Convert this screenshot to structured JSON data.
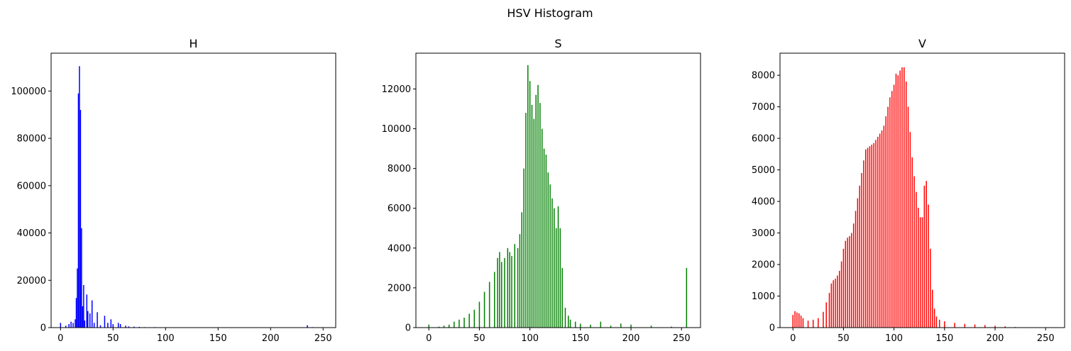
{
  "figure": {
    "title": "HSV Histogram"
  },
  "chart_data": [
    {
      "type": "bar",
      "title": "H",
      "color": "#0000ff",
      "xlim": [
        -9,
        262
      ],
      "ylim": [
        0,
        116000
      ],
      "xticks": [
        0,
        50,
        100,
        150,
        200,
        250
      ],
      "yticks": [
        0,
        20000,
        40000,
        60000,
        80000,
        100000
      ],
      "grid": false,
      "x": [
        0,
        5,
        8,
        10,
        12,
        14,
        15,
        16,
        17,
        18,
        19,
        20,
        21,
        22,
        23,
        25,
        26,
        28,
        30,
        32,
        35,
        38,
        42,
        45,
        48,
        50,
        55,
        57,
        62,
        65,
        70,
        75,
        80,
        90,
        100,
        120,
        150,
        180,
        200,
        220,
        235,
        240,
        250
      ],
      "values": [
        2000,
        800,
        1500,
        2500,
        2000,
        3500,
        12500,
        25000,
        99000,
        110500,
        92000,
        42000,
        9000,
        18000,
        3000,
        14000,
        7000,
        6000,
        11500,
        2000,
        6500,
        1000,
        5000,
        2000,
        3500,
        1500,
        2000,
        1500,
        800,
        500,
        400,
        300,
        200,
        200,
        150,
        150,
        100,
        100,
        100,
        100,
        1000,
        200,
        100
      ]
    },
    {
      "type": "bar",
      "title": "S",
      "color": "#008000",
      "xlim": [
        -12.8,
        268.8
      ],
      "ylim": [
        0,
        13800
      ],
      "xticks": [
        0,
        50,
        100,
        150,
        200,
        250
      ],
      "yticks": [
        0,
        2000,
        4000,
        6000,
        8000,
        10000,
        12000
      ],
      "grid": false,
      "x": [
        0,
        10,
        15,
        20,
        25,
        30,
        35,
        40,
        45,
        50,
        55,
        60,
        65,
        68,
        70,
        72,
        75,
        78,
        80,
        82,
        85,
        88,
        90,
        92,
        94,
        96,
        98,
        100,
        102,
        104,
        106,
        108,
        110,
        112,
        114,
        116,
        118,
        120,
        122,
        124,
        126,
        128,
        130,
        132,
        135,
        138,
        140,
        145,
        150,
        160,
        170,
        180,
        190,
        200,
        220,
        240,
        255
      ],
      "values": [
        150,
        50,
        100,
        150,
        300,
        400,
        500,
        700,
        900,
        1300,
        1800,
        2300,
        2800,
        3500,
        3800,
        3300,
        3500,
        4000,
        3800,
        3600,
        4200,
        4000,
        4700,
        5800,
        8000,
        10800,
        13200,
        12400,
        11200,
        10500,
        11700,
        12200,
        11300,
        10000,
        9000,
        8700,
        7800,
        7200,
        6500,
        6000,
        5000,
        6100,
        5000,
        3000,
        1000,
        600,
        400,
        300,
        200,
        150,
        300,
        100,
        200,
        150,
        100,
        50,
        3000
      ]
    },
    {
      "type": "bar",
      "title": "V",
      "color": "#ff0000",
      "xlim": [
        -12.8,
        268.8
      ],
      "ylim": [
        0,
        8700
      ],
      "xticks": [
        0,
        50,
        100,
        150,
        200,
        250
      ],
      "yticks": [
        0,
        1000,
        2000,
        3000,
        4000,
        5000,
        6000,
        7000,
        8000
      ],
      "grid": false,
      "x": [
        0,
        2,
        4,
        6,
        8,
        10,
        15,
        20,
        25,
        30,
        33,
        36,
        38,
        40,
        42,
        44,
        46,
        48,
        50,
        52,
        54,
        56,
        58,
        60,
        62,
        64,
        66,
        68,
        70,
        72,
        74,
        76,
        78,
        80,
        82,
        84,
        86,
        88,
        90,
        92,
        94,
        96,
        98,
        100,
        102,
        104,
        106,
        108,
        110,
        112,
        114,
        116,
        118,
        120,
        122,
        124,
        126,
        128,
        130,
        132,
        134,
        136,
        138,
        140,
        142,
        145,
        150,
        160,
        170,
        180,
        190,
        200,
        210,
        220,
        230,
        240,
        250
      ],
      "values": [
        400,
        520,
        480,
        450,
        380,
        300,
        220,
        250,
        300,
        500,
        800,
        1100,
        1400,
        1500,
        1550,
        1650,
        1800,
        2100,
        2500,
        2750,
        2850,
        2900,
        3000,
        3300,
        3700,
        4100,
        4500,
        4900,
        5300,
        5650,
        5700,
        5750,
        5800,
        5850,
        5950,
        6050,
        6150,
        6250,
        6400,
        6700,
        7000,
        7300,
        7500,
        7700,
        8050,
        8000,
        8150,
        8250,
        8250,
        7800,
        7000,
        6200,
        5400,
        4800,
        4300,
        3800,
        3500,
        3500,
        4500,
        4650,
        3900,
        2500,
        1200,
        600,
        350,
        250,
        200,
        150,
        120,
        100,
        80,
        60,
        40,
        20,
        10,
        5,
        0
      ]
    }
  ]
}
